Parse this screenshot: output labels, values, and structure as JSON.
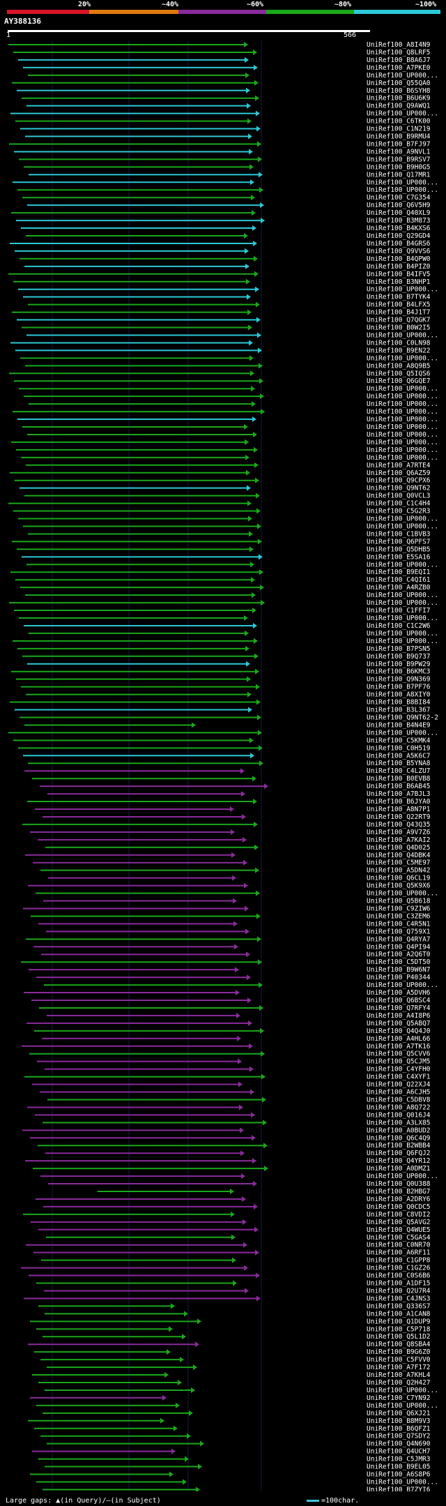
{
  "legend": {
    "labels": [
      "20%",
      "~40%",
      "~60%",
      "~80%",
      "~100%"
    ],
    "colors": [
      "#d8142a",
      "#e07a10",
      "#8a2b9c",
      "#1aa81a",
      "#2cc8d6"
    ]
  },
  "query_id": "AY388136",
  "ruler": {
    "start": "1",
    "end": "566"
  },
  "footer": {
    "large_gaps": "Large gaps: ▲(in Query)/—(in Subject)",
    "scale": "=100char."
  },
  "rows": [
    "UniRef100_A8I4N9",
    "UniRef100_Q8LRF5",
    "UniRef100_B8A6J7",
    "UniRef100_A7PKE0",
    "UniRef100_UP000...",
    "UniRef100_Q55QA0",
    "UniRef100_B6SYH8",
    "UniRef100_B6U6K9",
    "UniRef100_Q9AWQ1",
    "UniRef100_UP000...",
    "UniRef100_C6TK00",
    "UniRef100_C1N219",
    "UniRef100_B9RMU4",
    "UniRef100_B7FJ97",
    "UniRef100_A9NVL1",
    "UniRef100_B9RSV7",
    "UniRef100_B9H0G5",
    "UniRef100_Q17MR1",
    "UniRef100_UP000...",
    "UniRef100_UP000...",
    "UniRef100_C7G354",
    "UniRef100_Q6V5H9",
    "UniRef100_Q40XL9",
    "UniRef100_B3M873",
    "UniRef100_B4KXS6",
    "UniRef100_Q29GD4",
    "UniRef100_B4GRS6",
    "UniRef100_Q9VVS6",
    "UniRef100_B4QPW0",
    "UniRef100_B4PIZ0",
    "UniRef100_B4IFV5",
    "UniRef100_B3NHP1",
    "UniRef100_UP000...",
    "UniRef100_B7TYK4",
    "UniRef100_B4LFX5",
    "UniRef100_B4J1T7",
    "UniRef100_Q7QGK7",
    "UniRef100_B0W2I5",
    "UniRef100_UP000...",
    "UniRef100_C0LN98",
    "UniRef100_B9EN22",
    "UniRef100_UP000...",
    "UniRef100_A8Q9B5",
    "UniRef100_Q5IQS6",
    "UniRef100_Q6GQE7",
    "UniRef100_UP000...",
    "UniRef100_UP000...",
    "UniRef100_UP000...",
    "UniRef100_UP000...",
    "UniRef100_UP000...",
    "UniRef100_UP000...",
    "UniRef100_UP000...",
    "UniRef100_UP000...",
    "UniRef100_UP000...",
    "UniRef100_UP000...",
    "UniRef100_A7RTE4",
    "UniRef100_Q6AZ59",
    "UniRef100_Q9CPX6",
    "UniRef100_Q9NT62",
    "UniRef100_Q0VCL3",
    "UniRef100_C1C4H4",
    "UniRef100_C5G2R3",
    "UniRef100_UP000...",
    "UniRef100_UP000...",
    "UniRef100_C1BVB3",
    "UniRef100_Q6PFS7",
    "UniRef100_Q5DHB5",
    "UniRef100_E5SA16",
    "UniRef100_UP000...",
    "UniRef100_B9EQI1",
    "UniRef100_C4QI61",
    "UniRef100_A4RZB0",
    "UniRef100_UP000...",
    "UniRef100_UP000...",
    "UniRef100_C1FFI7",
    "UniRef100_UP000...",
    "UniRef100_C1C2W6",
    "UniRef100_UP000...",
    "UniRef100_UP000...",
    "UniRef100_B7PSN5",
    "UniRef100_B9Q737",
    "UniRef100_B9PW29",
    "UniRef100_B6KMC3",
    "UniRef100_Q9N369",
    "UniRef100_B7PF76",
    "UniRef100_A8XIY0",
    "UniRef100_B8BI84",
    "UniRef100_B3L367",
    "UniRef100_Q9NT62-2",
    "UniRef100_B4N4E9",
    "UniRef100_UP000...",
    "UniRef100_C5KMK4",
    "UniRef100_C0H519",
    "UniRef100_A5K6C7",
    "UniRef100_B5YNA8",
    "UniRef100_C4LZU7",
    "UniRef100_B0EVB8",
    "UniRef100_B6AB45",
    "UniRef100_A7BJL3",
    "UniRef100_B6JYA0",
    "UniRef100_A8N7P1",
    "UniRef100_Q22RT9",
    "UniRef100_Q43Q35",
    "UniRef100_A9V7Z6",
    "UniRef100_A7KAI2",
    "UniRef100_Q4D025",
    "UniRef100_Q4DBK4",
    "UniRef100_C5ME97",
    "UniRef100_A5DN42",
    "UniRef100_Q6CL19",
    "UniRef100_Q5K9X6",
    "UniRef100_UP000...",
    "UniRef100_Q5B618",
    "UniRef100_C9ZIW6",
    "UniRef100_C3ZEM6",
    "UniRef100_C4R5N1",
    "UniRef100_Q759X1",
    "UniRef100_Q4RYA7",
    "UniRef100_Q4PI94",
    "UniRef100_A2Q6T0",
    "UniRef100_C5DT50",
    "UniRef100_B9W6N7",
    "UniRef100_P40344",
    "UniRef100_UP000...",
    "UniRef100_A5DVH6",
    "UniRef100_Q6BSC4",
    "UniRef100_Q7RFY4",
    "UniRef100_A4I8P6",
    "UniRef100_Q5ABQ7",
    "UniRef100_Q4Q4J0",
    "UniRef100_A4HL66",
    "UniRef100_A7TK16",
    "UniRef100_Q5CVV6",
    "UniRef100_Q5CJM5",
    "UniRef100_C4YFH0",
    "UniRef100_C4XYF1",
    "UniRef100_Q22XJ4",
    "UniRef100_A6CJH5",
    "UniRef100_C5DBV8",
    "UniRef100_A8Q722",
    "UniRef100_Q016J4",
    "UniRef100_A3LX85",
    "UniRef100_A0BUD2",
    "UniRef100_Q6C4Q9",
    "UniRef100_B2WBB4",
    "UniRef100_Q6FQJ2",
    "UniRef100_Q4YR12",
    "UniRef100_A0DMZ1",
    "UniRef100_UP000...",
    "UniRef100_Q0U388",
    "UniRef100_B2HBG7",
    "UniRef100_A2DRY6",
    "UniRef100_Q0CDC5",
    "UniRef100_C8VDI2",
    "UniRef100_Q5AVG2",
    "UniRef100_Q4WUE5",
    "UniRef100_C5GAS4",
    "UniRef100_C0NR70",
    "UniRef100_A6RF11",
    "UniRef100_C1GPP8",
    "UniRef100_C1GZ26",
    "UniRef100_C0S6B6",
    "UniRef100_A1DF15",
    "UniRef100_Q2U7R4",
    "UniRef100_C4JNS3",
    "UniRef100_Q336S7",
    "UniRef100_A1CAN8",
    "UniRef100_Q1DUP9",
    "UniRef100_C5P718",
    "UniRef100_Q5L1D2",
    "UniRef100_Q8SBA4",
    "UniRef100_B9G6Z0",
    "UniRef100_C5FVV0",
    "UniRef100_A7F172",
    "UniRef100_A7KHL4",
    "UniRef100_Q2H427",
    "UniRef100_UP000...",
    "UniRef100_C7YN92",
    "UniRef100_UP000...",
    "UniRef100_Q6XJ21",
    "UniRef100_B8M9V3",
    "UniRef100_B6QFZ1",
    "UniRef100_Q7SDY2",
    "UniRef100_Q4N690",
    "UniRef100_Q4UCH7",
    "UniRef100_C5JMR3",
    "UniRef100_B9EL05",
    "UniRef100_A6S8P6",
    "UniRef100_UP000...",
    "UniRef100_B7ZYI6"
  ]
}
